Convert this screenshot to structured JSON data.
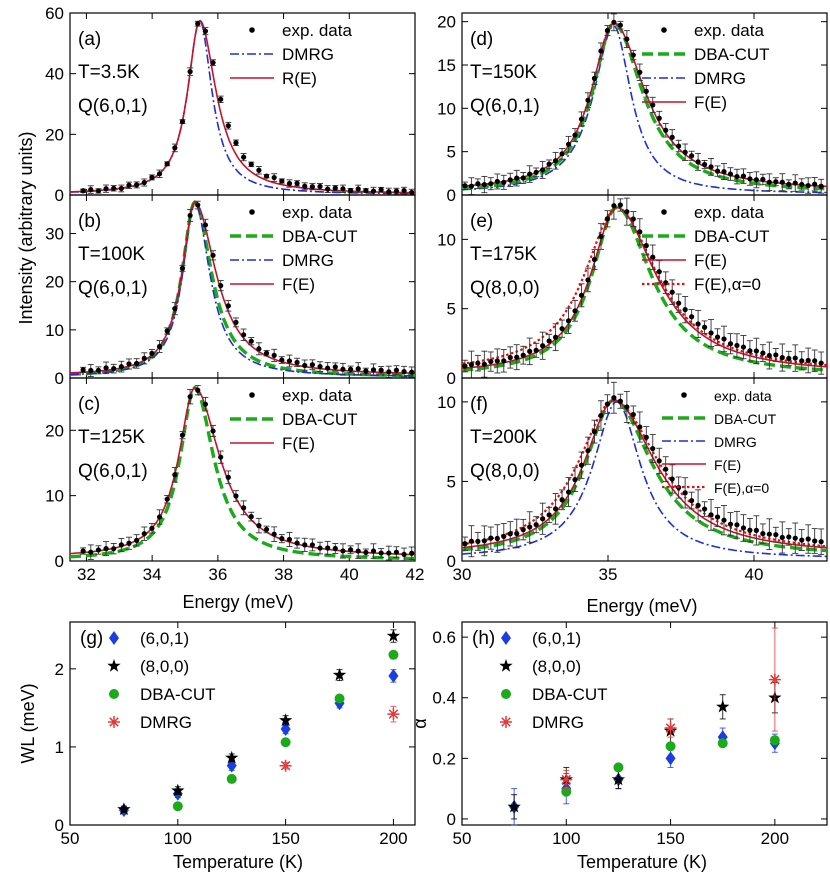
{
  "shared": {
    "ylabel_top": "Intensity (arbitrary units)",
    "xlabel_top": "Energy (meV)",
    "xlabel_bottom": "Temperature (K)"
  },
  "colors": {
    "exp": "#000000",
    "dmrg": "#1f2fd6",
    "re": "#c8102e",
    "dba": "#1aaa1a",
    "alpha0": "#e01010",
    "blue_marker": "#1a3ee0",
    "green_marker": "#1aaa1a",
    "red_marker": "#e03a3a"
  },
  "chart_data": [
    {
      "id": "a",
      "type": "line",
      "label": "(a)",
      "temp": "T=3.5K",
      "q": "Q(6,0,1)",
      "xlim": [
        31.5,
        42
      ],
      "ylim": [
        0,
        60
      ],
      "yticks": [
        0,
        20,
        40,
        60
      ],
      "xticks": [
        32,
        34,
        36,
        38,
        40,
        42
      ],
      "show_xticklabels": false,
      "legend": [
        {
          "label": "exp. data",
          "style": "exp"
        },
        {
          "label": "DMRG",
          "style": "dmrg"
        },
        {
          "label": "R(E)",
          "style": "re"
        }
      ],
      "curves": [
        {
          "name": "DMRG",
          "style": "dmrg",
          "center": 35.45,
          "amp": 57.5,
          "gl": 0.45,
          "gr": 0.45,
          "base": 0.2
        },
        {
          "name": "R(E)",
          "style": "re",
          "center": 35.45,
          "amp": 57.5,
          "gl": 0.45,
          "gr": 0.6,
          "base": 0.3
        }
      ],
      "points": {
        "center": 35.45,
        "amp": 57.5,
        "gl": 0.45,
        "gr": 0.7,
        "base": 0.5,
        "from": 31.9,
        "to": 41.9,
        "n": 44,
        "err": 0.9
      }
    },
    {
      "id": "b",
      "type": "line",
      "label": "(b)",
      "temp": "T=100K",
      "q": "Q(6,0,1)",
      "xlim": [
        31.5,
        42
      ],
      "ylim": [
        0,
        38
      ],
      "yticks": [
        0,
        10,
        20,
        30
      ],
      "xticks": [
        32,
        34,
        36,
        38,
        40,
        42
      ],
      "show_xticklabels": false,
      "legend": [
        {
          "label": "exp. data",
          "style": "exp"
        },
        {
          "label": "DBA-CUT",
          "style": "dba"
        },
        {
          "label": "DMRG",
          "style": "dmrg"
        },
        {
          "label": "F(E)",
          "style": "re"
        }
      ],
      "curves": [
        {
          "name": "DBA-CUT",
          "style": "dba",
          "center": 35.3,
          "amp": 36.5,
          "gl": 0.48,
          "gr": 0.62,
          "base": 0.2
        },
        {
          "name": "DMRG",
          "style": "dmrg",
          "center": 35.3,
          "amp": 36.5,
          "gl": 0.45,
          "gr": 0.55,
          "base": 0.2
        },
        {
          "name": "F(E)",
          "style": "re",
          "center": 35.3,
          "amp": 36.5,
          "gl": 0.48,
          "gr": 0.78,
          "base": 0.5
        }
      ],
      "points": {
        "center": 35.3,
        "amp": 36.5,
        "gl": 0.48,
        "gr": 0.82,
        "base": 0.8,
        "from": 31.9,
        "to": 41.9,
        "n": 44,
        "err": 0.9
      }
    },
    {
      "id": "c",
      "type": "line",
      "label": "(c)",
      "temp": "T=125K",
      "q": "Q(6,0,1)",
      "xlim": [
        31.5,
        42
      ],
      "ylim": [
        0,
        28
      ],
      "yticks": [
        0,
        10,
        20
      ],
      "xticks": [
        32,
        34,
        36,
        38,
        40,
        42
      ],
      "show_xticklabels": true,
      "legend": [
        {
          "label": "exp. data",
          "style": "exp"
        },
        {
          "label": "DBA-CUT",
          "style": "dba"
        },
        {
          "label": "F(E)",
          "style": "re"
        }
      ],
      "curves": [
        {
          "name": "DBA-CUT",
          "style": "dba",
          "center": 35.3,
          "amp": 26.5,
          "gl": 0.55,
          "gr": 0.7,
          "base": 0.1
        },
        {
          "name": "F(E)",
          "style": "re",
          "center": 35.3,
          "amp": 26.5,
          "gl": 0.6,
          "gr": 0.92,
          "base": 0.5
        }
      ],
      "points": {
        "center": 35.3,
        "amp": 26.5,
        "gl": 0.6,
        "gr": 0.95,
        "base": 0.6,
        "from": 31.9,
        "to": 41.9,
        "n": 44,
        "err": 0.8
      }
    },
    {
      "id": "d",
      "type": "line",
      "label": "(d)",
      "temp": "T=150K",
      "q": "Q(6,0,1)",
      "xlim": [
        30,
        42.5
      ],
      "ylim": [
        0,
        21
      ],
      "yticks": [
        0,
        5,
        10,
        15,
        20
      ],
      "xticks": [
        30,
        35,
        40
      ],
      "show_xticklabels": false,
      "legend": [
        {
          "label": "exp. data",
          "style": "exp"
        },
        {
          "label": "DBA-CUT",
          "style": "dba"
        },
        {
          "label": "DMRG",
          "style": "dmrg"
        },
        {
          "label": "F(E)",
          "style": "re"
        }
      ],
      "curves": [
        {
          "name": "DMRG",
          "style": "dmrg",
          "center": 35.2,
          "amp": 19.5,
          "gl": 0.85,
          "gr": 0.72,
          "base": 0.1
        },
        {
          "name": "DBA-CUT",
          "style": "dba",
          "center": 35.2,
          "amp": 19.8,
          "gl": 0.9,
          "gr": 1.2,
          "base": 0.2
        },
        {
          "name": "F(E)",
          "style": "re",
          "center": 35.2,
          "amp": 19.8,
          "gl": 0.95,
          "gr": 1.3,
          "base": 0.4
        }
      ],
      "points": {
        "center": 35.2,
        "amp": 20,
        "gl": 0.95,
        "gr": 1.35,
        "base": 0.4,
        "from": 30.1,
        "to": 42.3,
        "n": 56,
        "err": 0.7
      }
    },
    {
      "id": "e",
      "type": "line",
      "label": "(e)",
      "temp": "T=175K",
      "q": "Q(8,0,0)",
      "xlim": [
        30,
        42.5
      ],
      "ylim": [
        0,
        13.2
      ],
      "yticks": [
        0,
        5,
        10
      ],
      "xticks": [
        30,
        35,
        40
      ],
      "show_xticklabels": false,
      "legend": [
        {
          "label": "exp. data",
          "style": "exp"
        },
        {
          "label": "DBA-CUT",
          "style": "dba"
        },
        {
          "label": "F(E)",
          "style": "re"
        },
        {
          "label": "F(E),α=0",
          "style": "alpha0"
        }
      ],
      "curves": [
        {
          "name": "F(E),α=0",
          "style": "alpha0",
          "center": 35.3,
          "amp": 12.3,
          "gl": 1.35,
          "gr": 1.7,
          "base": 0.3
        },
        {
          "name": "DBA-CUT",
          "style": "dba",
          "center": 35.3,
          "amp": 12.3,
          "gl": 1.05,
          "gr": 1.45,
          "base": 0.1
        },
        {
          "name": "F(E)",
          "style": "re",
          "center": 35.3,
          "amp": 12.3,
          "gl": 1.1,
          "gr": 1.65,
          "base": 0.2
        }
      ],
      "points": {
        "center": 35.3,
        "amp": 12.5,
        "gl": 1.1,
        "gr": 1.8,
        "base": 0.4,
        "from": 30.1,
        "to": 42.3,
        "n": 56,
        "err": 0.7
      }
    },
    {
      "id": "f",
      "type": "line",
      "label": "(f)",
      "temp": "T=200K",
      "q": "Q(8,0,0)",
      "xlim": [
        30,
        42.5
      ],
      "ylim": [
        0,
        11.5
      ],
      "yticks": [
        0,
        5,
        10
      ],
      "xticks": [
        30,
        35,
        40
      ],
      "show_xticklabels": true,
      "small_legend": true,
      "legend": [
        {
          "label": "exp. data",
          "style": "exp"
        },
        {
          "label": "DBA-CUT",
          "style": "dba"
        },
        {
          "label": "DMRG",
          "style": "dmrg"
        },
        {
          "label": "F(E)",
          "style": "re"
        },
        {
          "label": "F(E),α=0",
          "style": "alpha0"
        }
      ],
      "curves": [
        {
          "name": "F(E),α=0",
          "style": "alpha0",
          "center": 35.2,
          "amp": 10.1,
          "gl": 1.5,
          "gr": 1.9,
          "base": 0.3
        },
        {
          "name": "DMRG",
          "style": "dmrg",
          "center": 35.3,
          "amp": 10,
          "gl": 1.0,
          "gr": 1.0,
          "base": 0.1
        },
        {
          "name": "DBA-CUT",
          "style": "dba",
          "center": 35.2,
          "amp": 10.1,
          "gl": 1.2,
          "gr": 1.6,
          "base": 0.2
        },
        {
          "name": "F(E)",
          "style": "re",
          "center": 35.2,
          "amp": 10.1,
          "gl": 1.25,
          "gr": 1.75,
          "base": 0.3
        }
      ],
      "points": {
        "center": 35.2,
        "amp": 10.2,
        "gl": 1.25,
        "gr": 1.9,
        "base": 0.6,
        "from": 30.1,
        "to": 42.3,
        "n": 56,
        "err": 0.7
      }
    },
    {
      "id": "g",
      "type": "scatter",
      "label": "(g)",
      "xlim": [
        50,
        210
      ],
      "ylim": [
        0,
        2.6
      ],
      "yticks": [
        0,
        1,
        2
      ],
      "xticks": [
        50,
        100,
        150,
        200
      ],
      "xlabel": "Temperature (K)",
      "ylabel": "WL (meV)",
      "series": [
        {
          "name": "(6,0,1)",
          "marker": "diamond",
          "color": "blue_marker",
          "x": [
            75,
            100,
            125,
            150,
            175,
            200
          ],
          "y": [
            0.19,
            0.4,
            0.76,
            1.23,
            1.56,
            1.91
          ],
          "err": [
            0.05,
            0.05,
            0.06,
            0.06,
            0.06,
            0.08
          ]
        },
        {
          "name": "(8,0,0)",
          "marker": "star",
          "color": "exp",
          "x": [
            75,
            100,
            125,
            150,
            175,
            200
          ],
          "y": [
            0.2,
            0.44,
            0.86,
            1.34,
            1.92,
            2.42
          ],
          "err": [
            0.04,
            0.05,
            0.05,
            0.06,
            0.07,
            0.08
          ]
        },
        {
          "name": "DBA-CUT",
          "marker": "circle",
          "color": "green_marker",
          "x": [
            100,
            125,
            150,
            175,
            200
          ],
          "y": [
            0.24,
            0.59,
            1.06,
            1.62,
            2.18
          ],
          "err": []
        },
        {
          "name": "DMRG",
          "marker": "asterisk",
          "color": "red_marker",
          "x": [
            150,
            200
          ],
          "y": [
            0.76,
            1.42
          ],
          "err": [
            0.04,
            0.1
          ]
        }
      ]
    },
    {
      "id": "h",
      "type": "scatter",
      "label": "(h)",
      "xlim": [
        50,
        225
      ],
      "ylim": [
        -0.02,
        0.65
      ],
      "yticks": [
        0,
        0.2,
        0.4,
        0.6
      ],
      "xticks": [
        50,
        100,
        150,
        200
      ],
      "xlabel": "Temperature (K)",
      "ylabel": "α",
      "series": [
        {
          "name": "(6,0,1)",
          "marker": "diamond",
          "color": "blue_marker",
          "x": [
            75,
            100,
            125,
            150,
            175,
            200
          ],
          "y": [
            0.04,
            0.1,
            0.13,
            0.2,
            0.27,
            0.25
          ],
          "err": [
            0.06,
            0.05,
            0.03,
            0.03,
            0.03,
            0.03
          ]
        },
        {
          "name": "(8,0,0)",
          "marker": "star",
          "color": "exp",
          "x": [
            75,
            100,
            125,
            150,
            175,
            200
          ],
          "y": [
            0.04,
            0.13,
            0.13,
            0.29,
            0.37,
            0.4
          ],
          "err": [
            0.04,
            0.04,
            0.03,
            0.04,
            0.04,
            0.05
          ]
        },
        {
          "name": "DBA-CUT",
          "marker": "circle",
          "color": "green_marker",
          "x": [
            100,
            125,
            150,
            175,
            200
          ],
          "y": [
            0.09,
            0.17,
            0.24,
            0.25,
            0.26
          ],
          "err": []
        },
        {
          "name": "DMRG",
          "marker": "asterisk",
          "color": "red_marker",
          "x": [
            100,
            150,
            200
          ],
          "y": [
            0.13,
            0.3,
            0.46
          ],
          "err": [
            0.03,
            0.03,
            0.17
          ]
        }
      ]
    }
  ]
}
